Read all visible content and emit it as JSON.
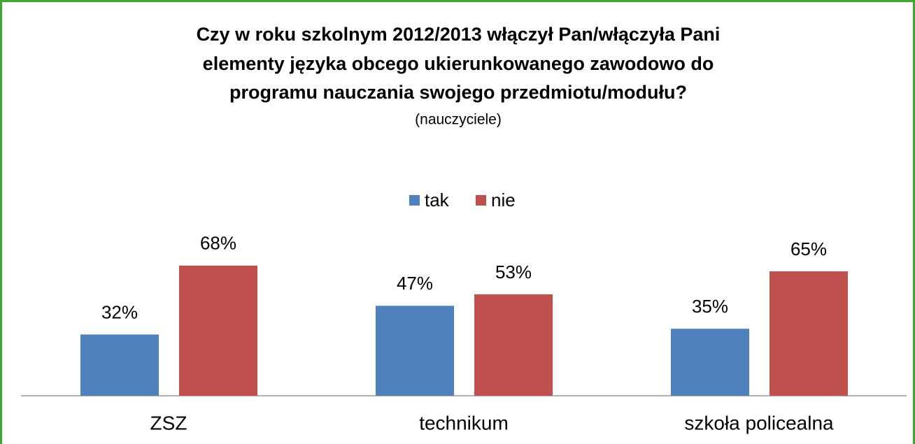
{
  "chart_data": {
    "type": "bar",
    "title": [
      "Czy w roku szkolnym 2012/2013 włączył Pan/włączyła Pani",
      "elementy języka obcego ukierunkowanego zawodowo do",
      "programu nauczania swojego przedmiotu/modułu?"
    ],
    "subtitle": "(nauczyciele)",
    "categories": [
      "ZSZ",
      "technikum",
      "szkoła policealna"
    ],
    "series": [
      {
        "name": "tak",
        "color": "#4f81bd",
        "values": [
          32,
          47,
          35
        ],
        "value_labels": [
          "32%",
          "47%",
          "35%"
        ]
      },
      {
        "name": "nie",
        "color": "#c0504d",
        "values": [
          68,
          53,
          65
        ],
        "value_labels": [
          "68%",
          "53%",
          "65%"
        ]
      }
    ],
    "ylim": [
      0,
      80
    ],
    "legend": "top"
  }
}
